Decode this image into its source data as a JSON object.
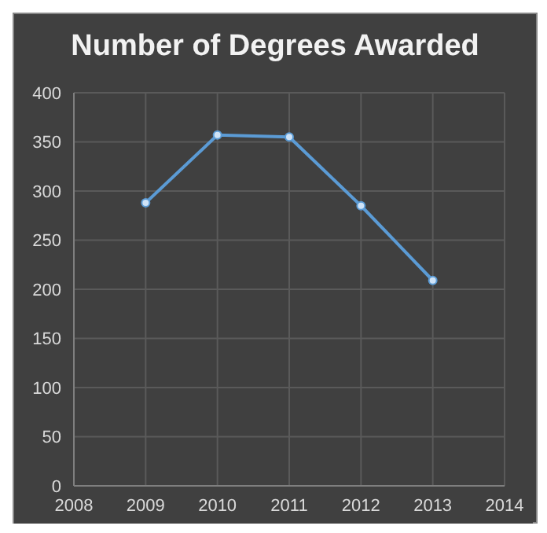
{
  "chart_data": {
    "type": "line",
    "title": "Number of Degrees Awarded",
    "x": [
      2009,
      2010,
      2011,
      2012,
      2013
    ],
    "series": [
      {
        "color": "#5b9bd5",
        "values": [
          288,
          357,
          355,
          285,
          209
        ]
      }
    ],
    "xlim": [
      2008,
      2014
    ],
    "xticks": [
      2008,
      2009,
      2010,
      2011,
      2012,
      2013,
      2014
    ],
    "ylim": [
      0,
      400
    ],
    "yticks": [
      0,
      50,
      100,
      150,
      200,
      250,
      300,
      350,
      400
    ],
    "grid": true,
    "marker": "circle",
    "line_style": "solid"
  }
}
